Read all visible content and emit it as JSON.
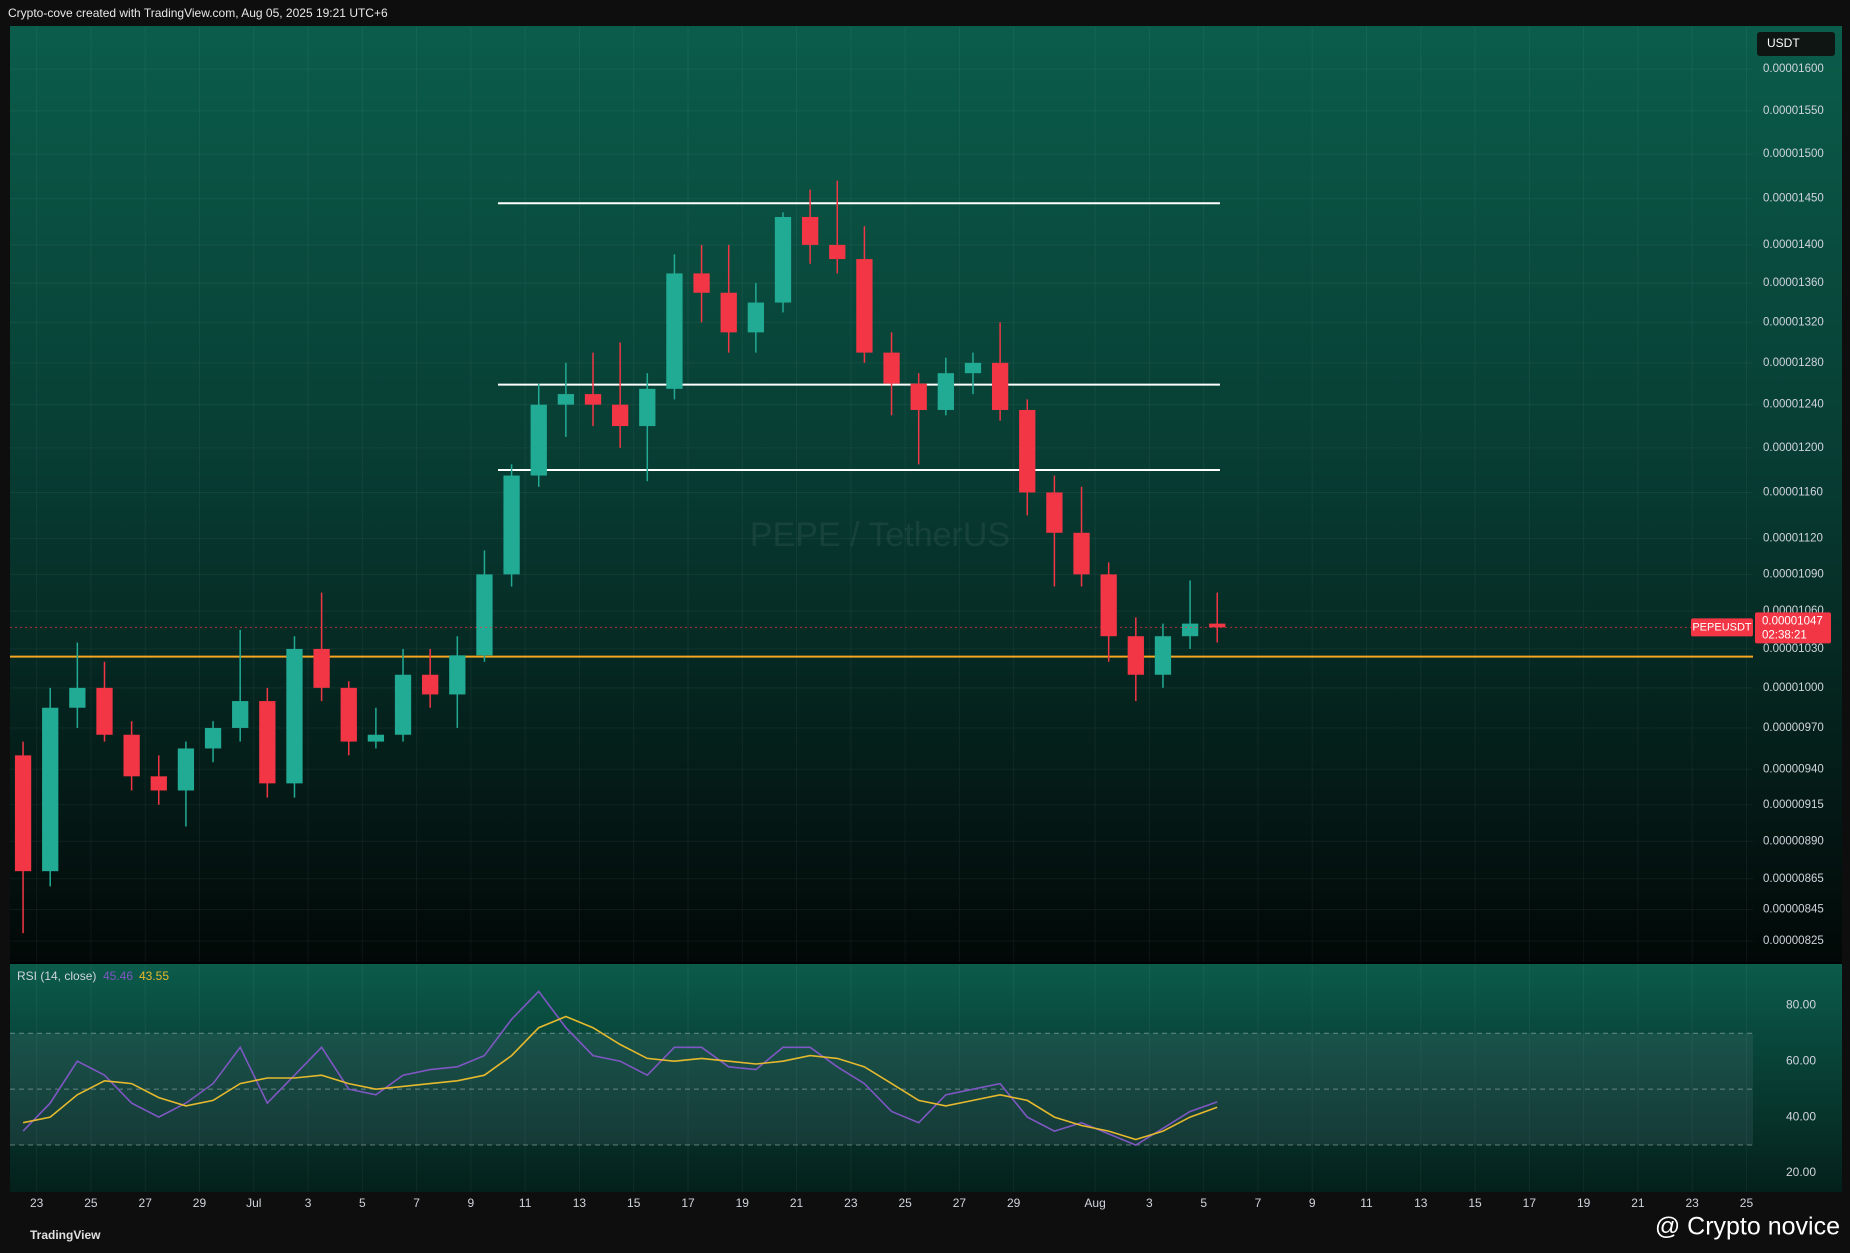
{
  "header": "Crypto-cove created with TradingView.com, Aug 05, 2025 19:21 UTC+6",
  "footer": {
    "brand": "TradingView",
    "author": "@ Crypto novice"
  },
  "chart_data": [
    {
      "type": "candlestick",
      "symbol_label": "PEPEUSDT",
      "currency": "USDT",
      "watermark": "PEPE / TetherUS",
      "x": [
        "06-22",
        "06-23",
        "06-24",
        "06-25",
        "06-26",
        "06-27",
        "06-28",
        "06-29",
        "06-30",
        "07-01",
        "07-02",
        "07-03",
        "07-04",
        "07-05",
        "07-06",
        "07-07",
        "07-08",
        "07-09",
        "07-10",
        "07-11",
        "07-12",
        "07-13",
        "07-14",
        "07-15",
        "07-16",
        "07-17",
        "07-18",
        "07-19",
        "07-20",
        "07-21",
        "07-22",
        "07-23",
        "07-24",
        "07-25",
        "07-26",
        "07-27",
        "07-28",
        "07-29",
        "07-30",
        "07-31",
        "08-01",
        "08-02",
        "08-03",
        "08-04",
        "08-05"
      ],
      "open": [
        9.5e-06,
        8.7e-06,
        9.85e-06,
        1e-05,
        9.65e-06,
        9.35e-06,
        9.25e-06,
        9.55e-06,
        9.7e-06,
        9.9e-06,
        9.3e-06,
        1.03e-05,
        1e-05,
        9.6e-06,
        9.65e-06,
        1.01e-05,
        9.95e-06,
        1.025e-05,
        1.09e-05,
        1.175e-05,
        1.24e-05,
        1.25e-05,
        1.24e-05,
        1.22e-05,
        1.255e-05,
        1.37e-05,
        1.35e-05,
        1.31e-05,
        1.34e-05,
        1.43e-05,
        1.4e-05,
        1.385e-05,
        1.29e-05,
        1.26e-05,
        1.235e-05,
        1.27e-05,
        1.28e-05,
        1.235e-05,
        1.16e-05,
        1.125e-05,
        1.09e-05,
        1.04e-05,
        1.01e-05,
        1.04e-05,
        1.05e-05
      ],
      "high": [
        9.6e-06,
        1e-05,
        1.035e-05,
        1.02e-05,
        9.75e-06,
        9.5e-06,
        9.6e-06,
        9.75e-06,
        1.045e-05,
        1e-05,
        1.04e-05,
        1.075e-05,
        1.005e-05,
        9.85e-06,
        1.03e-05,
        1.03e-05,
        1.04e-05,
        1.11e-05,
        1.185e-05,
        1.26e-05,
        1.28e-05,
        1.29e-05,
        1.3e-05,
        1.27e-05,
        1.39e-05,
        1.4e-05,
        1.4e-05,
        1.36e-05,
        1.435e-05,
        1.46e-05,
        1.47e-05,
        1.42e-05,
        1.31e-05,
        1.27e-05,
        1.285e-05,
        1.29e-05,
        1.32e-05,
        1.245e-05,
        1.175e-05,
        1.165e-05,
        1.1e-05,
        1.055e-05,
        1.05e-05,
        1.085e-05,
        1.075e-05
      ],
      "low": [
        8.3e-06,
        8.6e-06,
        9.7e-06,
        9.6e-06,
        9.25e-06,
        9.15e-06,
        9e-06,
        9.45e-06,
        9.6e-06,
        9.2e-06,
        9.2e-06,
        9.9e-06,
        9.5e-06,
        9.55e-06,
        9.6e-06,
        9.85e-06,
        9.7e-06,
        1.02e-05,
        1.08e-05,
        1.165e-05,
        1.21e-05,
        1.22e-05,
        1.2e-05,
        1.17e-05,
        1.245e-05,
        1.32e-05,
        1.29e-05,
        1.29e-05,
        1.33e-05,
        1.38e-05,
        1.37e-05,
        1.28e-05,
        1.23e-05,
        1.185e-05,
        1.23e-05,
        1.25e-05,
        1.225e-05,
        1.14e-05,
        1.08e-05,
        1.08e-05,
        1.02e-05,
        9.9e-06,
        1e-05,
        1.03e-05,
        1.035e-05
      ],
      "close": [
        8.7e-06,
        9.85e-06,
        1e-05,
        9.65e-06,
        9.35e-06,
        9.25e-06,
        9.55e-06,
        9.7e-06,
        9.9e-06,
        9.3e-06,
        1.03e-05,
        1e-05,
        9.6e-06,
        9.65e-06,
        1.01e-05,
        9.95e-06,
        1.025e-05,
        1.09e-05,
        1.175e-05,
        1.24e-05,
        1.25e-05,
        1.24e-05,
        1.22e-05,
        1.255e-05,
        1.37e-05,
        1.35e-05,
        1.31e-05,
        1.34e-05,
        1.43e-05,
        1.4e-05,
        1.385e-05,
        1.29e-05,
        1.26e-05,
        1.235e-05,
        1.27e-05,
        1.28e-05,
        1.235e-05,
        1.16e-05,
        1.125e-05,
        1.09e-05,
        1.04e-05,
        1.01e-05,
        1.04e-05,
        1.05e-05,
        1.047e-05
      ],
      "up_color": "#22ab94",
      "down_color": "#f23645",
      "log_scale": true,
      "grid": true,
      "ylim": [
        8.12e-06,
        1.652e-05
      ],
      "yticks": [
        {
          "value": 1.6e-05,
          "label": "0.00001600"
        },
        {
          "value": 1.55e-05,
          "label": "0.00001550"
        },
        {
          "value": 1.5e-05,
          "label": "0.00001500"
        },
        {
          "value": 1.45e-05,
          "label": "0.00001450"
        },
        {
          "value": 1.4e-05,
          "label": "0.00001400"
        },
        {
          "value": 1.36e-05,
          "label": "0.00001360"
        },
        {
          "value": 1.32e-05,
          "label": "0.00001320"
        },
        {
          "value": 1.28e-05,
          "label": "0.00001280"
        },
        {
          "value": 1.24e-05,
          "label": "0.00001240"
        },
        {
          "value": 1.2e-05,
          "label": "0.00001200"
        },
        {
          "value": 1.16e-05,
          "label": "0.00001160"
        },
        {
          "value": 1.12e-05,
          "label": "0.00001120"
        },
        {
          "value": 1.09e-05,
          "label": "0.00001090"
        },
        {
          "value": 1.06e-05,
          "label": "0.00001060"
        },
        {
          "value": 1.03e-05,
          "label": "0.00001030"
        },
        {
          "value": 1e-05,
          "label": "0.00001000"
        },
        {
          "value": 9.7e-06,
          "label": "0.00000970"
        },
        {
          "value": 9.4e-06,
          "label": "0.00000940"
        },
        {
          "value": 9.15e-06,
          "label": "0.00000915"
        },
        {
          "value": 8.9e-06,
          "label": "0.00000890"
        },
        {
          "value": 8.65e-06,
          "label": "0.00000865"
        },
        {
          "value": 8.45e-06,
          "label": "0.00000845"
        },
        {
          "value": 8.25e-06,
          "label": "0.00000825"
        }
      ],
      "xticks": [
        {
          "value": "06-23",
          "label": "23"
        },
        {
          "value": "06-25",
          "label": "25"
        },
        {
          "value": "06-27",
          "label": "27"
        },
        {
          "value": "06-29",
          "label": "29"
        },
        {
          "value": "07-01",
          "label": "Jul"
        },
        {
          "value": "07-03",
          "label": "3"
        },
        {
          "value": "07-05",
          "label": "5"
        },
        {
          "value": "07-07",
          "label": "7"
        },
        {
          "value": "07-09",
          "label": "9"
        },
        {
          "value": "07-11",
          "label": "11"
        },
        {
          "value": "07-13",
          "label": "13"
        },
        {
          "value": "07-15",
          "label": "15"
        },
        {
          "value": "07-17",
          "label": "17"
        },
        {
          "value": "07-19",
          "label": "19"
        },
        {
          "value": "07-21",
          "label": "21"
        },
        {
          "value": "07-23",
          "label": "23"
        },
        {
          "value": "07-25",
          "label": "25"
        },
        {
          "value": "07-27",
          "label": "27"
        },
        {
          "value": "07-29",
          "label": "29"
        },
        {
          "value": "08-01",
          "label": "Aug"
        },
        {
          "value": "08-03",
          "label": "3"
        },
        {
          "value": "08-05",
          "label": "5"
        },
        {
          "value": "08-07",
          "label": "7"
        },
        {
          "value": "08-09",
          "label": "9"
        },
        {
          "value": "08-11",
          "label": "11"
        },
        {
          "value": "08-13",
          "label": "13"
        },
        {
          "value": "08-15",
          "label": "15"
        },
        {
          "value": "08-17",
          "label": "17"
        },
        {
          "value": "08-19",
          "label": "19"
        },
        {
          "value": "08-21",
          "label": "21"
        },
        {
          "value": "08-23",
          "label": "23"
        },
        {
          "value": "08-25",
          "label": "25"
        }
      ],
      "levels": [
        {
          "value": 1.024e-05,
          "color": "#f5a623"
        },
        {
          "value": 1.445e-05,
          "color": "#ffffff",
          "start": "07-10",
          "end": "08-05"
        },
        {
          "value": 1.259e-05,
          "color": "#ffffff",
          "start": "07-10",
          "end": "08-05"
        },
        {
          "value": 1.18e-05,
          "color": "#ffffff",
          "start": "07-10",
          "end": "08-05"
        }
      ],
      "last_price": {
        "value": 1.047e-05,
        "label": "0.00001047"
      },
      "countdown": "02:38:21"
    },
    {
      "type": "line",
      "title": "RSI (14, close)",
      "series": [
        {
          "color": "#7e57c2",
          "values": [
            35,
            45,
            60,
            55,
            45,
            40,
            45,
            52,
            65,
            45,
            55,
            65,
            50,
            48,
            55,
            57,
            58,
            62,
            75,
            85,
            72,
            62,
            60,
            55,
            65,
            65,
            58,
            57,
            65,
            65,
            58,
            52,
            42,
            38,
            48,
            50,
            52,
            40,
            35,
            38,
            34,
            30,
            36,
            42,
            45.46
          ]
        },
        {
          "color": "#e5b92e",
          "values": [
            38,
            40,
            48,
            53,
            52,
            47,
            44,
            46,
            52,
            54,
            54,
            55,
            52,
            50,
            51,
            52,
            53,
            55,
            62,
            72,
            76,
            72,
            66,
            61,
            60,
            61,
            60,
            59,
            60,
            62,
            61,
            58,
            52,
            46,
            44,
            46,
            48,
            46,
            40,
            37,
            35,
            32,
            35,
            40,
            43.55
          ]
        }
      ],
      "ylim": [
        13.2,
        94.8
      ],
      "yticks": [
        {
          "value": 80,
          "label": "80.00"
        },
        {
          "value": 60,
          "label": "60.00"
        },
        {
          "value": 40,
          "label": "40.00"
        },
        {
          "value": 20,
          "label": "20.00"
        }
      ],
      "bands": [
        70,
        50,
        30
      ]
    }
  ]
}
